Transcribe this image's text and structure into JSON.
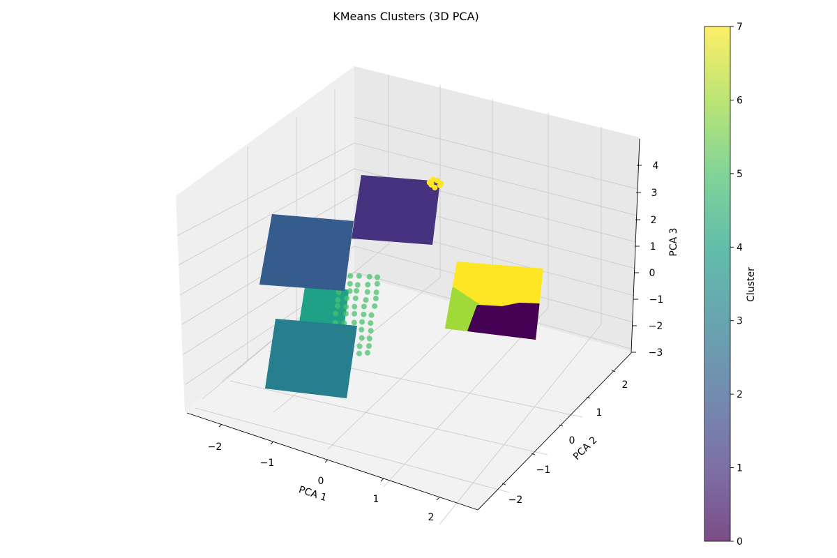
{
  "chart_data": {
    "type": "scatter",
    "projection": "3d",
    "title": "KMeans Clusters (3D PCA)",
    "xlabel": "PCA 1",
    "ylabel": "PCA 2",
    "zlabel": "PCA 3",
    "xticks": [
      "−2",
      "−1",
      "0",
      "1",
      "2"
    ],
    "yticks": [
      "−2",
      "−1",
      "0",
      "1",
      "2"
    ],
    "zticks": [
      "−3",
      "−2",
      "−1",
      "0",
      "1",
      "2",
      "3",
      "4"
    ],
    "xlim": [
      -2.5,
      2.5
    ],
    "ylim": [
      -2.5,
      2.5
    ],
    "zlim": [
      -3,
      4.6
    ],
    "grid": true,
    "colormap": "viridis",
    "colorbar": {
      "label": "Cluster",
      "ticks": [
        "0",
        "1",
        "2",
        "3",
        "4",
        "5",
        "6",
        "7"
      ],
      "range": [
        0,
        7
      ],
      "alpha": 0.7
    },
    "clusters": [
      {
        "id": 1,
        "color": "#46327e",
        "center": [
          -0.2,
          1.7,
          1.9
        ],
        "extent": [
          1.2,
          1.2,
          0.15
        ]
      },
      {
        "id": 2,
        "color": "#365c8d",
        "center": [
          -1.6,
          0.7,
          1.0
        ],
        "extent": [
          1.3,
          1.3,
          0.15
        ]
      },
      {
        "id": 3,
        "color": "#277f8e",
        "center": [
          -0.8,
          -1.2,
          -2.1
        ],
        "extent": [
          1.3,
          1.3,
          0.15
        ]
      },
      {
        "id": 4,
        "color": "#1fa187",
        "center": [
          -1.2,
          0.0,
          -0.7
        ],
        "extent": [
          0.5,
          0.5,
          1.0
        ]
      },
      {
        "id": 5,
        "color": "#4ac16d",
        "center": [
          -0.7,
          0.1,
          -0.7
        ],
        "extent": [
          0.6,
          0.6,
          1.0
        ]
      },
      {
        "id": 7,
        "color": "#fde725",
        "center": [
          1.6,
          0.6,
          0.3
        ],
        "extent": [
          1.2,
          1.0,
          0.15
        ]
      },
      {
        "id": 6,
        "color": "#a0da39",
        "center": [
          1.2,
          0.3,
          -1.2
        ],
        "extent": [
          0.4,
          0.5,
          0.15
        ]
      },
      {
        "id": 0,
        "color": "#440154",
        "center": [
          1.9,
          0.2,
          -1.3
        ],
        "extent": [
          0.8,
          0.6,
          0.15
        ]
      }
    ]
  }
}
